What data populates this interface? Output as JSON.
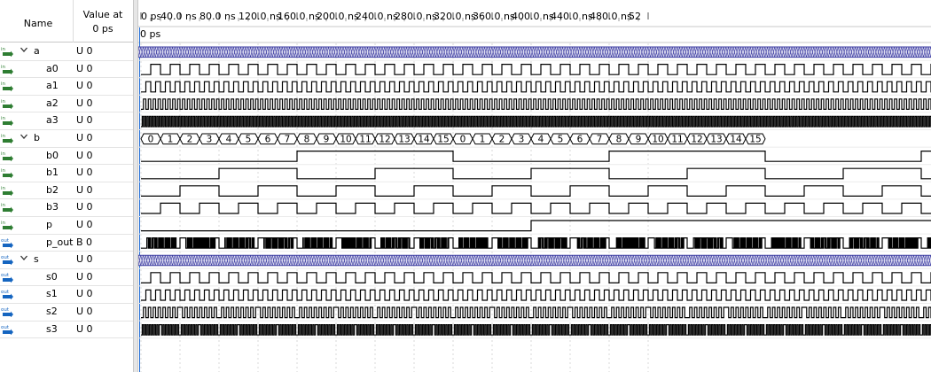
{
  "header": {
    "name_col": "Name",
    "value_col_line1": "Value at",
    "value_col_line2": "0 ps",
    "cursor_label": "0 ps"
  },
  "timeline": {
    "ticks": [
      "0 ps",
      "40.0 ns",
      "80.0 ns",
      "120.0 ns",
      "160.0 ns",
      "200.0 ns",
      "240.0 ns",
      "280.0 ns",
      "320.0 ns",
      "360.0 ns",
      "400.0 ns",
      "440.0 ns",
      "480.0 ns",
      "52"
    ]
  },
  "signals": [
    {
      "name": "a",
      "value": "U 0",
      "dir": "in",
      "group": true,
      "expanded": true
    },
    {
      "name": "a0",
      "value": "U 0",
      "dir": "in",
      "group": false
    },
    {
      "name": "a1",
      "value": "U 0",
      "dir": "in",
      "group": false
    },
    {
      "name": "a2",
      "value": "U 0",
      "dir": "in",
      "group": false
    },
    {
      "name": "a3",
      "value": "U 0",
      "dir": "in",
      "group": false
    },
    {
      "name": "b",
      "value": "U 0",
      "dir": "in",
      "group": true,
      "expanded": true
    },
    {
      "name": "b0",
      "value": "U 0",
      "dir": "in",
      "group": false
    },
    {
      "name": "b1",
      "value": "U 0",
      "dir": "in",
      "group": false
    },
    {
      "name": "b2",
      "value": "U 0",
      "dir": "in",
      "group": false
    },
    {
      "name": "b3",
      "value": "U 0",
      "dir": "in",
      "group": false
    },
    {
      "name": "p",
      "value": "U 0",
      "dir": "in",
      "group": false
    },
    {
      "name": "p_out",
      "value": "B 0",
      "dir": "out",
      "group": false
    },
    {
      "name": "s",
      "value": "U 0",
      "dir": "out",
      "group": true,
      "expanded": true
    },
    {
      "name": "s0",
      "value": "U 0",
      "dir": "out",
      "group": false
    },
    {
      "name": "s1",
      "value": "U 0",
      "dir": "out",
      "group": false
    },
    {
      "name": "s2",
      "value": "U 0",
      "dir": "out",
      "group": false
    },
    {
      "name": "s3",
      "value": "U 0",
      "dir": "out",
      "group": false
    }
  ],
  "bus_b_values": [
    "0",
    "1",
    "2",
    "3",
    "4",
    "5",
    "6",
    "7",
    "8",
    "9",
    "10",
    "11",
    "12",
    "13",
    "14",
    "15",
    "0",
    "1",
    "2",
    "3",
    "4",
    "5",
    "6",
    "7",
    "8",
    "9",
    "10",
    "11",
    "12",
    "13",
    "14",
    "15"
  ],
  "icon_labels": {
    "in": "in",
    "out": "out"
  },
  "colors": {
    "wave": "#000000",
    "bus_dense": "#3a3aa0",
    "bus_fill": "#e8e8f4",
    "icon_in": "#2e7d32",
    "icon_out": "#1565c0",
    "grid": "#d8d8d8"
  }
}
